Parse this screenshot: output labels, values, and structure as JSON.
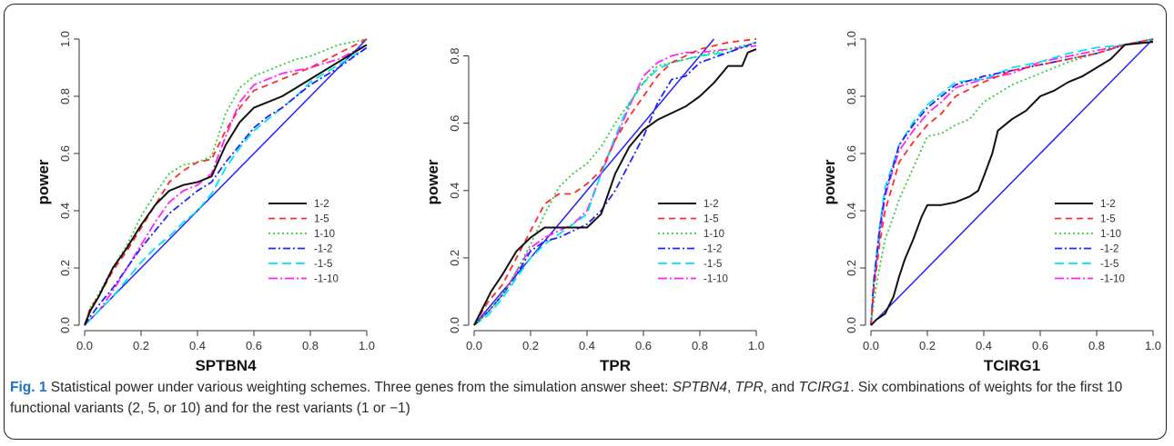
{
  "caption": {
    "label": "Fig. 1",
    "text_a": " Statistical power under various weighting schemes. Three genes from the simulation answer sheet: ",
    "gene1": "SPTBN4",
    "sep1": ", ",
    "gene2": "TPR",
    "sep2": ", and ",
    "gene3": "TCIRG1",
    "text_b": ". Six combinations of weights for the first 10 functional variants (2, 5, or 10) and for the rest variants (1 or −1)"
  },
  "legend_labels": [
    "1-2",
    "1-5",
    "1-10",
    "-1-2",
    "-1-5",
    "-1-10"
  ],
  "series_styles": [
    {
      "color": "#111111",
      "dash": ""
    },
    {
      "color": "#ff2a2a",
      "dash": "7,5"
    },
    {
      "color": "#33cc33",
      "dash": "2,3"
    },
    {
      "color": "#2222ff",
      "dash": "8,3,2,3"
    },
    {
      "color": "#00e5ee",
      "dash": "10,5"
    },
    {
      "color": "#ff22ff",
      "dash": "10,3,2,3"
    }
  ],
  "diagonal_color": "#2222ff",
  "chart_data": [
    {
      "type": "line",
      "xlabel": "SPTBN4",
      "ylabel": "power",
      "xlim": [
        0,
        1
      ],
      "ylim": [
        0,
        1
      ],
      "xticks": [
        "0.0",
        "0.2",
        "0.4",
        "0.6",
        "0.8",
        "1.0"
      ],
      "yticks": [
        "0.0",
        "0.2",
        "0.4",
        "0.6",
        "0.8",
        "1.0"
      ],
      "reference_line": [
        [
          0,
          0
        ],
        [
          1,
          1
        ]
      ],
      "series": [
        {
          "name": "1-2",
          "x": [
            0,
            0.02,
            0.05,
            0.1,
            0.15,
            0.2,
            0.25,
            0.3,
            0.35,
            0.4,
            0.45,
            0.5,
            0.55,
            0.6,
            0.65,
            0.7,
            0.75,
            0.8,
            0.9,
            1.0
          ],
          "y": [
            0,
            0.05,
            0.1,
            0.2,
            0.27,
            0.35,
            0.42,
            0.47,
            0.49,
            0.5,
            0.52,
            0.63,
            0.71,
            0.76,
            0.78,
            0.8,
            0.83,
            0.86,
            0.92,
            0.98
          ]
        },
        {
          "name": "1-5",
          "x": [
            0,
            0.02,
            0.05,
            0.1,
            0.15,
            0.2,
            0.25,
            0.3,
            0.35,
            0.4,
            0.45,
            0.5,
            0.55,
            0.6,
            0.65,
            0.7,
            0.75,
            0.8,
            0.9,
            1.0
          ],
          "y": [
            0,
            0.06,
            0.1,
            0.19,
            0.26,
            0.34,
            0.42,
            0.5,
            0.54,
            0.57,
            0.58,
            0.68,
            0.76,
            0.82,
            0.84,
            0.86,
            0.88,
            0.9,
            0.95,
            1.0
          ]
        },
        {
          "name": "1-10",
          "x": [
            0,
            0.02,
            0.05,
            0.1,
            0.15,
            0.2,
            0.25,
            0.3,
            0.35,
            0.4,
            0.45,
            0.5,
            0.55,
            0.6,
            0.65,
            0.7,
            0.75,
            0.8,
            0.9,
            1.0
          ],
          "y": [
            0,
            0.06,
            0.11,
            0.2,
            0.28,
            0.38,
            0.46,
            0.53,
            0.56,
            0.57,
            0.59,
            0.74,
            0.83,
            0.87,
            0.89,
            0.91,
            0.93,
            0.94,
            0.98,
            1.0
          ]
        },
        {
          "name": "-1-2",
          "x": [
            0,
            0.02,
            0.05,
            0.1,
            0.15,
            0.2,
            0.25,
            0.3,
            0.35,
            0.4,
            0.45,
            0.5,
            0.55,
            0.6,
            0.65,
            0.7,
            0.75,
            0.8,
            0.9,
            1.0
          ],
          "y": [
            0,
            0.03,
            0.07,
            0.13,
            0.2,
            0.27,
            0.33,
            0.39,
            0.43,
            0.47,
            0.5,
            0.57,
            0.63,
            0.69,
            0.73,
            0.76,
            0.8,
            0.84,
            0.9,
            0.97
          ]
        },
        {
          "name": "-1-5",
          "x": [
            0,
            0.02,
            0.05,
            0.1,
            0.15,
            0.2,
            0.25,
            0.3,
            0.35,
            0.4,
            0.45,
            0.5,
            0.55,
            0.6,
            0.65,
            0.7,
            0.75,
            0.8,
            0.9,
            1.0
          ],
          "y": [
            0,
            0.02,
            0.05,
            0.1,
            0.16,
            0.22,
            0.27,
            0.31,
            0.36,
            0.4,
            0.46,
            0.55,
            0.62,
            0.68,
            0.72,
            0.76,
            0.8,
            0.85,
            0.91,
            0.97
          ]
        },
        {
          "name": "-1-10",
          "x": [
            0,
            0.02,
            0.05,
            0.1,
            0.15,
            0.2,
            0.25,
            0.3,
            0.35,
            0.4,
            0.45,
            0.5,
            0.55,
            0.6,
            0.65,
            0.7,
            0.75,
            0.8,
            0.9,
            1.0
          ],
          "y": [
            0,
            0.02,
            0.05,
            0.12,
            0.2,
            0.28,
            0.36,
            0.43,
            0.47,
            0.49,
            0.53,
            0.66,
            0.78,
            0.84,
            0.86,
            0.88,
            0.89,
            0.9,
            0.93,
            0.98
          ]
        }
      ]
    },
    {
      "type": "line",
      "xlabel": "TPR",
      "ylabel": "power",
      "xlim": [
        0,
        1
      ],
      "ylim": [
        0,
        0.85
      ],
      "xticks": [
        "0.0",
        "0.2",
        "0.4",
        "0.6",
        "0.8",
        "1.0"
      ],
      "yticks": [
        "0.0",
        "0.2",
        "0.4",
        "0.6",
        "0.8"
      ],
      "reference_line": [
        [
          0,
          0
        ],
        [
          0.85,
          0.85
        ]
      ],
      "series": [
        {
          "name": "1-2",
          "x": [
            0,
            0.03,
            0.06,
            0.1,
            0.15,
            0.2,
            0.25,
            0.3,
            0.35,
            0.4,
            0.45,
            0.5,
            0.55,
            0.6,
            0.65,
            0.7,
            0.75,
            0.8,
            0.85,
            0.9,
            0.95,
            0.97,
            1.0
          ],
          "y": [
            0,
            0.05,
            0.1,
            0.15,
            0.22,
            0.26,
            0.29,
            0.29,
            0.29,
            0.29,
            0.33,
            0.45,
            0.53,
            0.58,
            0.61,
            0.63,
            0.65,
            0.68,
            0.72,
            0.77,
            0.77,
            0.81,
            0.82
          ]
        },
        {
          "name": "1-5",
          "x": [
            0,
            0.05,
            0.1,
            0.15,
            0.2,
            0.25,
            0.3,
            0.35,
            0.4,
            0.45,
            0.5,
            0.55,
            0.6,
            0.65,
            0.7,
            0.75,
            0.8,
            0.9,
            1.0
          ],
          "y": [
            0,
            0.07,
            0.12,
            0.2,
            0.28,
            0.36,
            0.39,
            0.39,
            0.42,
            0.46,
            0.55,
            0.62,
            0.68,
            0.74,
            0.78,
            0.8,
            0.82,
            0.84,
            0.85
          ]
        },
        {
          "name": "1-10",
          "x": [
            0,
            0.05,
            0.1,
            0.15,
            0.2,
            0.25,
            0.3,
            0.35,
            0.4,
            0.45,
            0.5,
            0.55,
            0.6,
            0.65,
            0.7,
            0.75,
            0.8,
            0.9,
            1.0
          ],
          "y": [
            0,
            0.04,
            0.09,
            0.16,
            0.24,
            0.33,
            0.41,
            0.45,
            0.48,
            0.53,
            0.6,
            0.66,
            0.72,
            0.77,
            0.78,
            0.79,
            0.8,
            0.82,
            0.84
          ]
        },
        {
          "name": "-1-2",
          "x": [
            0,
            0.05,
            0.1,
            0.15,
            0.2,
            0.25,
            0.3,
            0.35,
            0.4,
            0.45,
            0.5,
            0.55,
            0.6,
            0.65,
            0.7,
            0.75,
            0.8,
            0.9,
            1.0
          ],
          "y": [
            0,
            0.04,
            0.09,
            0.15,
            0.22,
            0.25,
            0.26,
            0.28,
            0.3,
            0.34,
            0.4,
            0.48,
            0.56,
            0.66,
            0.73,
            0.74,
            0.78,
            0.81,
            0.84
          ]
        },
        {
          "name": "-1-5",
          "x": [
            0,
            0.05,
            0.1,
            0.15,
            0.2,
            0.25,
            0.3,
            0.35,
            0.4,
            0.45,
            0.5,
            0.55,
            0.6,
            0.65,
            0.7,
            0.75,
            0.8,
            0.9,
            1.0
          ],
          "y": [
            0,
            0.03,
            0.08,
            0.14,
            0.2,
            0.24,
            0.27,
            0.3,
            0.33,
            0.45,
            0.56,
            0.66,
            0.72,
            0.76,
            0.78,
            0.79,
            0.8,
            0.81,
            0.84
          ]
        },
        {
          "name": "-1-10",
          "x": [
            0,
            0.05,
            0.1,
            0.15,
            0.2,
            0.25,
            0.3,
            0.35,
            0.4,
            0.45,
            0.5,
            0.55,
            0.6,
            0.65,
            0.7,
            0.75,
            0.8,
            0.9,
            1.0
          ],
          "y": [
            0,
            0.04,
            0.09,
            0.16,
            0.23,
            0.26,
            0.28,
            0.3,
            0.34,
            0.45,
            0.55,
            0.65,
            0.74,
            0.78,
            0.8,
            0.81,
            0.81,
            0.82,
            0.83
          ]
        }
      ]
    },
    {
      "type": "line",
      "xlabel": "TCIRG1",
      "ylabel": "power",
      "xlim": [
        0,
        1
      ],
      "ylim": [
        0,
        1
      ],
      "xticks": [
        "0.0",
        "0.2",
        "0.4",
        "0.6",
        "0.8",
        "1.0"
      ],
      "yticks": [
        "0.0",
        "0.2",
        "0.4",
        "0.6",
        "0.8",
        "1.0"
      ],
      "reference_line": [
        [
          0,
          0
        ],
        [
          1,
          1
        ]
      ],
      "series": [
        {
          "name": "1-2",
          "x": [
            0,
            0.02,
            0.05,
            0.08,
            0.1,
            0.12,
            0.15,
            0.18,
            0.2,
            0.25,
            0.3,
            0.35,
            0.38,
            0.4,
            0.43,
            0.45,
            0.5,
            0.55,
            0.6,
            0.65,
            0.7,
            0.75,
            0.8,
            0.85,
            0.9,
            1.0
          ],
          "y": [
            0,
            0.02,
            0.04,
            0.1,
            0.17,
            0.23,
            0.3,
            0.38,
            0.42,
            0.42,
            0.43,
            0.45,
            0.47,
            0.52,
            0.6,
            0.68,
            0.72,
            0.75,
            0.8,
            0.82,
            0.85,
            0.87,
            0.9,
            0.93,
            0.98,
            0.99
          ]
        },
        {
          "name": "1-5",
          "x": [
            0,
            0.01,
            0.03,
            0.05,
            0.08,
            0.1,
            0.15,
            0.2,
            0.25,
            0.3,
            0.4,
            0.5,
            0.6,
            0.7,
            0.8,
            0.9,
            1.0
          ],
          "y": [
            0,
            0.12,
            0.28,
            0.4,
            0.5,
            0.57,
            0.64,
            0.7,
            0.74,
            0.8,
            0.85,
            0.89,
            0.91,
            0.93,
            0.95,
            0.98,
            1.0
          ]
        },
        {
          "name": "1-10",
          "x": [
            0,
            0.01,
            0.03,
            0.05,
            0.08,
            0.1,
            0.15,
            0.2,
            0.25,
            0.3,
            0.35,
            0.4,
            0.5,
            0.6,
            0.7,
            0.8,
            0.9,
            1.0
          ],
          "y": [
            0,
            0.08,
            0.2,
            0.3,
            0.38,
            0.44,
            0.55,
            0.66,
            0.67,
            0.7,
            0.72,
            0.78,
            0.84,
            0.88,
            0.92,
            0.95,
            0.98,
            1.0
          ]
        },
        {
          "name": "-1-2",
          "x": [
            0,
            0.01,
            0.03,
            0.05,
            0.08,
            0.1,
            0.15,
            0.2,
            0.25,
            0.3,
            0.4,
            0.5,
            0.6,
            0.7,
            0.8,
            0.9,
            1.0
          ],
          "y": [
            0,
            0.15,
            0.33,
            0.46,
            0.56,
            0.63,
            0.7,
            0.76,
            0.8,
            0.84,
            0.87,
            0.89,
            0.91,
            0.93,
            0.95,
            0.98,
            1.0
          ]
        },
        {
          "name": "-1-5",
          "x": [
            0,
            0.01,
            0.03,
            0.05,
            0.08,
            0.1,
            0.15,
            0.2,
            0.25,
            0.3,
            0.4,
            0.5,
            0.6,
            0.7,
            0.8,
            0.9,
            1.0
          ],
          "y": [
            0,
            0.16,
            0.34,
            0.48,
            0.57,
            0.63,
            0.71,
            0.77,
            0.81,
            0.85,
            0.86,
            0.9,
            0.92,
            0.95,
            0.97,
            0.98,
            1.0
          ]
        },
        {
          "name": "-1-10",
          "x": [
            0,
            0.01,
            0.03,
            0.05,
            0.08,
            0.1,
            0.15,
            0.2,
            0.25,
            0.3,
            0.4,
            0.5,
            0.6,
            0.7,
            0.8,
            0.9,
            1.0
          ],
          "y": [
            0,
            0.14,
            0.31,
            0.45,
            0.55,
            0.61,
            0.68,
            0.74,
            0.78,
            0.83,
            0.86,
            0.88,
            0.92,
            0.94,
            0.96,
            0.98,
            1.0
          ]
        }
      ]
    }
  ]
}
